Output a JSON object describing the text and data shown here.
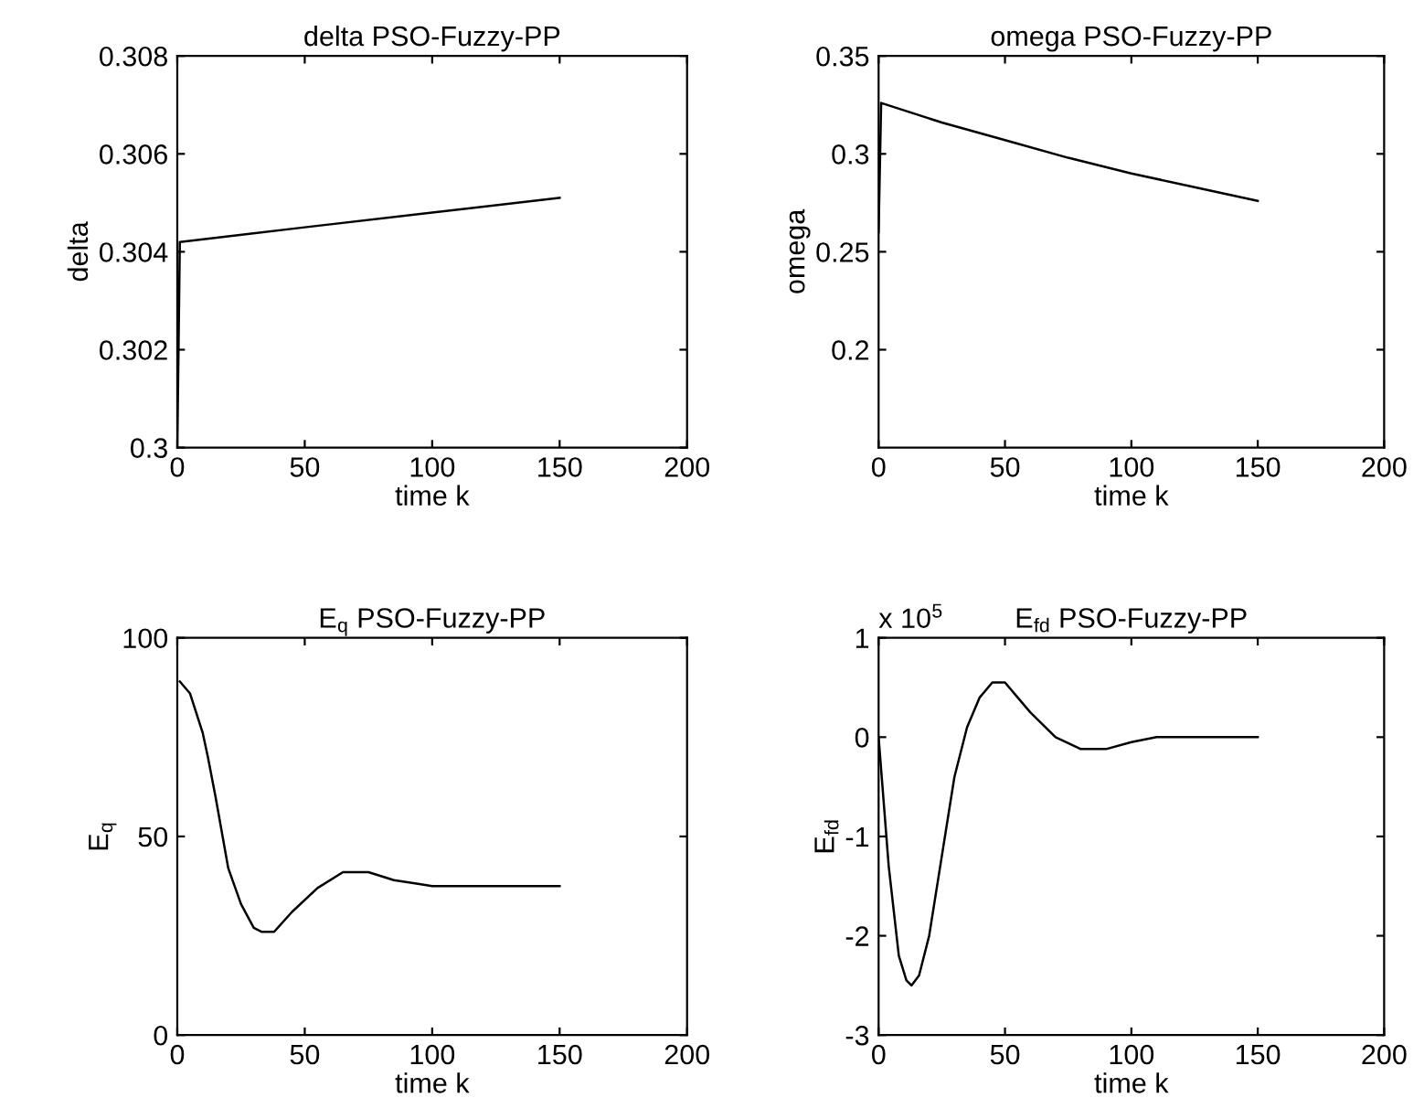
{
  "chart_data": [
    {
      "type": "line",
      "title": "delta PSO-Fuzzy-PP",
      "xlabel": "time k",
      "ylabel": "delta",
      "xlim": [
        0,
        200
      ],
      "xticks": [
        0,
        50,
        100,
        150,
        200
      ],
      "ylim": [
        0.3,
        0.308
      ],
      "yticks": [
        0.3,
        0.302,
        0.304,
        0.306,
        0.308
      ],
      "series": [
        {
          "color": "#000000",
          "x": [
            0,
            1,
            50,
            100,
            150
          ],
          "values": [
            0.3,
            0.3042,
            0.3045,
            0.3048,
            0.3051
          ]
        }
      ]
    },
    {
      "type": "line",
      "title": "omega PSO-Fuzzy-PP",
      "xlabel": "time k",
      "ylabel": "omega",
      "xlim": [
        0,
        200
      ],
      "xticks": [
        0,
        50,
        100,
        150,
        200
      ],
      "ylim": [
        0.15,
        0.35
      ],
      "yticks": [
        0.2,
        0.25,
        0.3,
        0.35
      ],
      "series": [
        {
          "color": "#000000",
          "x": [
            0,
            1,
            25,
            50,
            75,
            100,
            125,
            150
          ],
          "values": [
            0.26,
            0.326,
            0.316,
            0.307,
            0.298,
            0.29,
            0.283,
            0.276
          ]
        }
      ]
    },
    {
      "type": "line",
      "title": "E$_{q}$ PSO-Fuzzy-PP",
      "xlabel": "time k",
      "ylabel": "E$_{q}$",
      "xlim": [
        0,
        200
      ],
      "xticks": [
        0,
        50,
        100,
        150,
        200
      ],
      "ylim": [
        0,
        100
      ],
      "yticks": [
        0,
        50,
        100
      ],
      "series": [
        {
          "color": "#000000",
          "x": [
            1,
            5,
            10,
            12,
            15,
            20,
            25,
            30,
            33,
            38,
            45,
            55,
            65,
            75,
            85,
            95,
            100,
            150
          ],
          "values": [
            89,
            86,
            76,
            70,
            60,
            42,
            33,
            27,
            26,
            26,
            31,
            37,
            41,
            41,
            39,
            38,
            37.5,
            37.5
          ]
        }
      ]
    },
    {
      "type": "line",
      "title": "E$_{fd}$ PSO-Fuzzy-PP",
      "xlabel": "time k",
      "ylabel": "E$_{fd}$",
      "annotations": [
        "x 10$^{5}$"
      ],
      "xlim": [
        0,
        200
      ],
      "xticks": [
        0,
        50,
        100,
        150,
        200
      ],
      "ylim": [
        -3,
        1
      ],
      "yticks": [
        -3,
        -2,
        -1,
        0,
        1
      ],
      "series": [
        {
          "color": "#000000",
          "x": [
            0,
            4,
            8,
            11,
            13,
            16,
            20,
            25,
            30,
            35,
            40,
            45,
            50,
            55,
            60,
            70,
            80,
            90,
            100,
            110,
            150
          ],
          "values": [
            0,
            -1.3,
            -2.2,
            -2.45,
            -2.5,
            -2.4,
            -2.0,
            -1.2,
            -0.4,
            0.1,
            0.4,
            0.55,
            0.55,
            0.4,
            0.25,
            0.0,
            -0.12,
            -0.12,
            -0.05,
            0,
            0
          ]
        }
      ]
    }
  ]
}
